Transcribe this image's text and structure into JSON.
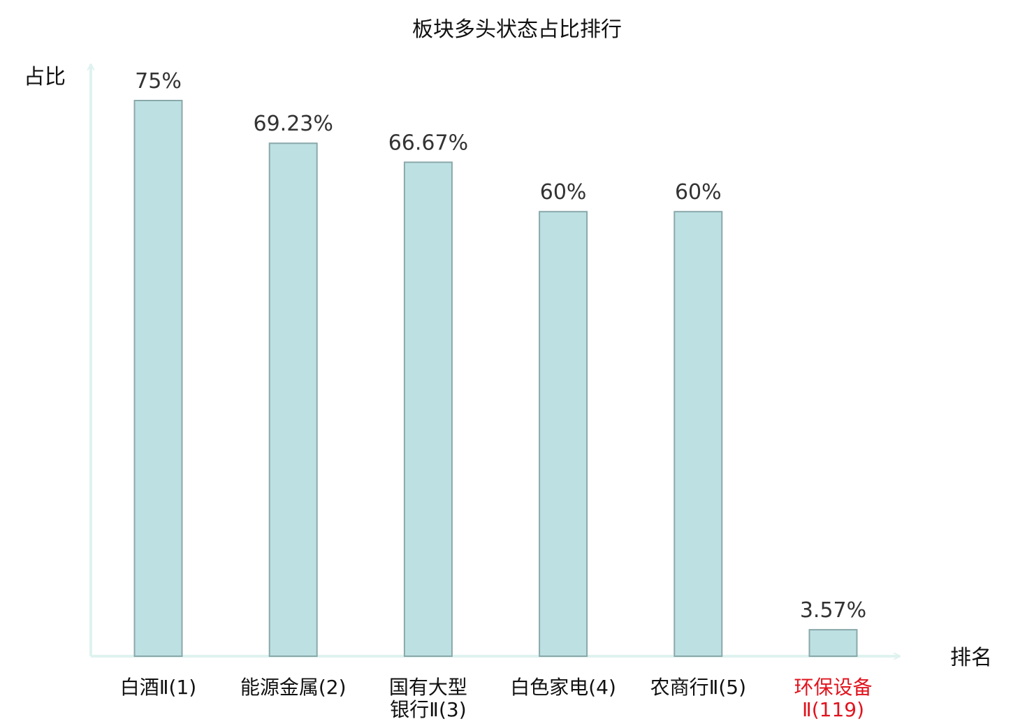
{
  "chart_data": {
    "type": "bar",
    "title": "板块多头状态占比排行",
    "ylabel": "占比",
    "xlabel": "排名",
    "ylim": [
      0,
      80
    ],
    "grid": false,
    "legend": "none",
    "categories": [
      [
        "白酒Ⅱ(1)"
      ],
      [
        "能源金属(2)"
      ],
      [
        "国有大型",
        "银行Ⅱ(3)"
      ],
      [
        "白色家电(4)"
      ],
      [
        "农商行Ⅱ(5)"
      ],
      [
        "环保设备",
        "Ⅱ(119)"
      ]
    ],
    "values": [
      75,
      69.23,
      66.67,
      60,
      60,
      3.57
    ],
    "value_labels": [
      "75%",
      "69.23%",
      "66.67%",
      "60%",
      "60%",
      "3.57%"
    ],
    "highlight_index": 5
  },
  "colors": {
    "bar_fill": "#bde1e3",
    "bar_stroke": "#8aa8aa",
    "axis": "#dff2ef",
    "category_text": "#111111",
    "highlight_text": "#e0141e"
  }
}
